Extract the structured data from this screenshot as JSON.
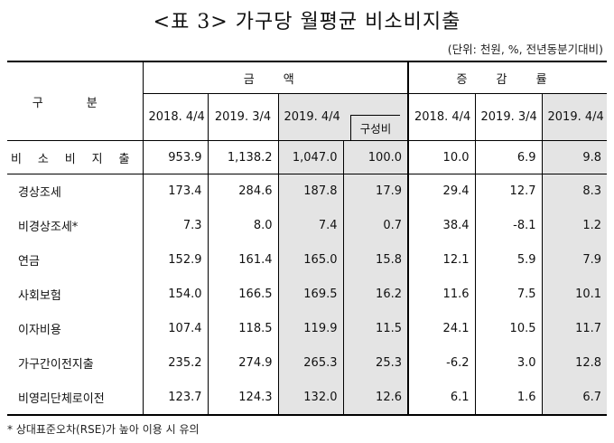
{
  "title": "<표 3> 가구당 월평균 비소비지출",
  "unit_note": "(단위: 천원, %, 전년동분기대비)",
  "header": {
    "category_label": "구 분",
    "amount_group": "금 액",
    "rate_group": "증 감 률",
    "amount_cols": [
      "2018. 4/4",
      "2019. 3/4",
      "2019. 4/4"
    ],
    "composition_label": "구성비",
    "rate_cols": [
      "2018. 4/4",
      "2019. 3/4",
      "2019. 4/4"
    ]
  },
  "rows": [
    {
      "label": "비 소 비 지 출",
      "a1": "953.9",
      "a2": "1,138.2",
      "a3": "1,047.0",
      "comp": "100.0",
      "r1": "10.0",
      "r2": "6.9",
      "r3": "9.8"
    },
    {
      "label": "경상조세",
      "a1": "173.4",
      "a2": "284.6",
      "a3": "187.8",
      "comp": "17.9",
      "r1": "29.4",
      "r2": "12.7",
      "r3": "8.3"
    },
    {
      "label": "비경상조세*",
      "a1": "7.3",
      "a2": "8.0",
      "a3": "7.4",
      "comp": "0.7",
      "r1": "38.4",
      "r2": "-8.1",
      "r3": "1.2"
    },
    {
      "label": "연금",
      "a1": "152.9",
      "a2": "161.4",
      "a3": "165.0",
      "comp": "15.8",
      "r1": "12.1",
      "r2": "5.9",
      "r3": "7.9"
    },
    {
      "label": "사회보험",
      "a1": "154.0",
      "a2": "166.5",
      "a3": "169.5",
      "comp": "16.2",
      "r1": "11.6",
      "r2": "7.5",
      "r3": "10.1"
    },
    {
      "label": "이자비용",
      "a1": "107.4",
      "a2": "118.5",
      "a3": "119.9",
      "comp": "11.5",
      "r1": "24.1",
      "r2": "10.5",
      "r3": "11.7"
    },
    {
      "label": "가구간이전지출",
      "a1": "235.2",
      "a2": "274.9",
      "a3": "265.3",
      "comp": "25.3",
      "r1": "-6.2",
      "r2": "3.0",
      "r3": "12.8"
    },
    {
      "label": "비영리단체로이전",
      "a1": "123.7",
      "a2": "124.3",
      "a3": "132.0",
      "comp": "12.6",
      "r1": "6.1",
      "r2": "1.6",
      "r3": "6.7"
    }
  ],
  "footnote": "* 상대표준오차(RSE)가 높아 이용 시 유의"
}
